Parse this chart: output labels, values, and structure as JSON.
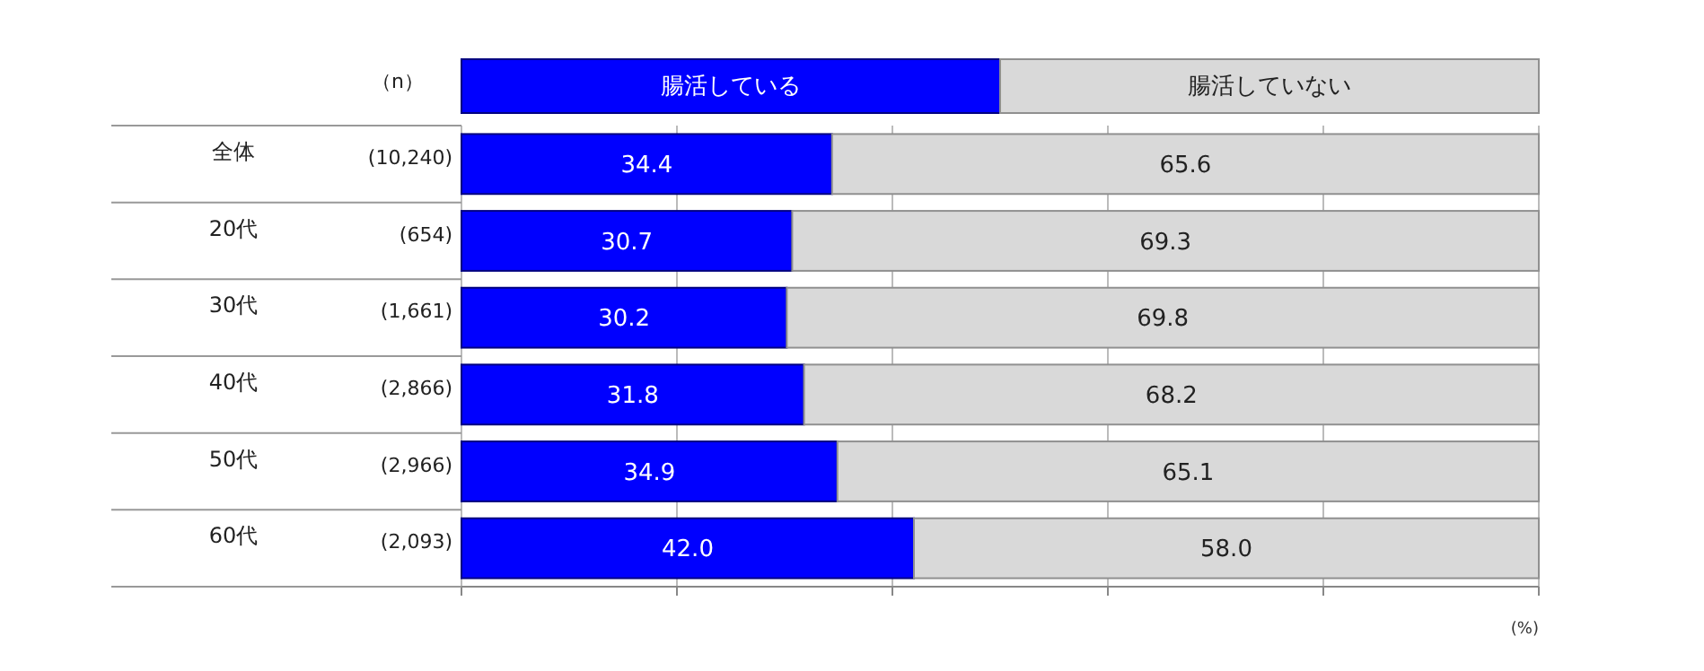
{
  "chart_data": {
    "type": "bar",
    "orientation": "horizontal",
    "stacked": true,
    "categories": [
      "全体",
      "20代",
      "30代",
      "40代",
      "50代",
      "60代"
    ],
    "series": [
      {
        "name": "腸活している",
        "color": "#0000ff",
        "values": [
          34.4,
          30.7,
          30.2,
          31.8,
          34.9,
          42.0
        ],
        "value_labels": [
          "34.4",
          "30.7",
          "30.2",
          "31.8",
          "34.9",
          "42.0"
        ]
      },
      {
        "name": "腸活していない",
        "color": "#d9d9d9",
        "values": [
          65.6,
          69.3,
          69.8,
          68.2,
          65.1,
          58.0
        ],
        "value_labels": [
          "65.6",
          "69.3",
          "69.8",
          "68.2",
          "65.1",
          "58.0"
        ]
      }
    ],
    "xlim": [
      0,
      100
    ],
    "xticks": [
      {
        "value": 0,
        "label": null
      },
      {
        "value": 20,
        "label": null
      },
      {
        "value": 40,
        "label": null
      },
      {
        "value": 60,
        "label": null
      },
      {
        "value": 80,
        "label": null
      },
      {
        "value": 100,
        "label": null
      }
    ],
    "tick_labels": "y",
    "grid": "x",
    "legend": "top",
    "xlabel": "(%)",
    "annotations": [
      "（n）",
      "(10,240)",
      "(654)",
      "(1,661)",
      "(2,866)",
      "(2,966)",
      "(2,093)"
    ]
  }
}
